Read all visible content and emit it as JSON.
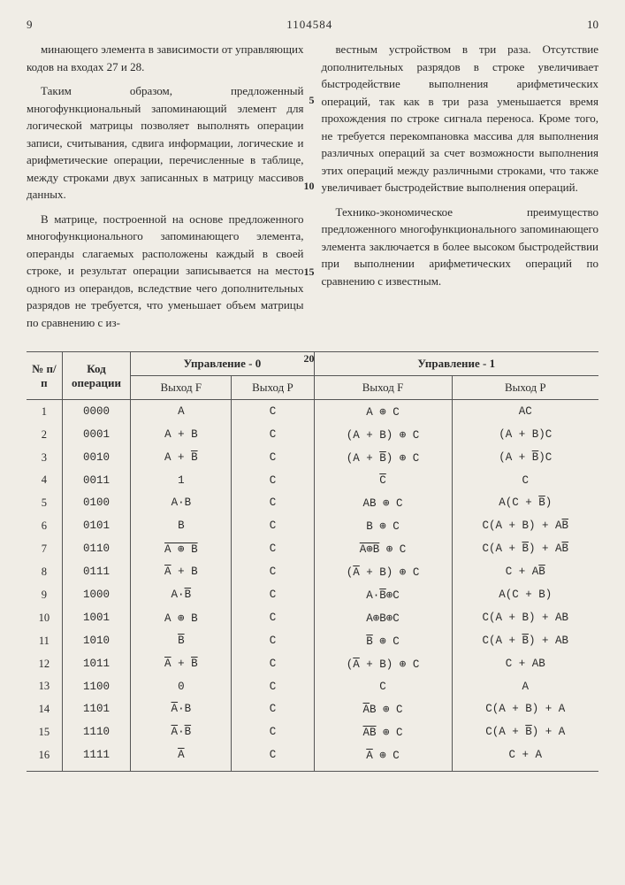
{
  "header": {
    "page_left": "9",
    "doc_number": "1104584",
    "page_right": "10"
  },
  "text": {
    "left_p1": "минающего элемента в зависимости от управляющих кодов на входах 27 и 28.",
    "left_p2": "Таким образом, предложенный многофункциональный запоминающий элемент для логической матрицы позволяет выполнять операции записи, считывания, сдвига информации, логические и арифметические операции, перечисленные в таблице, между строками двух записанных в матрицу массивов данных.",
    "left_p3": "В матрице, построенной на основе предложенного многофункционального запоминающего элемента, операнды слагаемых расположены каждый в своей строке, и результат операции записывается на место одного из операндов, вследствие чего дополнительных разрядов не требуется, что уменьшает объем матрицы по сравнению с из-",
    "right_p1": "вестным устройством в три раза. Отсутствие дополнительных разрядов в строке увеличивает быстродействие выполнения арифметических операций, так как в три раза уменьшается время прохождения по строке сигнала переноса. Кроме того, не требуется перекомпановка массива для выполнения различных операций за счет возможности выполнения этих операций между различными строками, что также увеличивает быстродействие выполнения операций.",
    "right_p2": "Технико-экономическое преимущество предложенного многофункционального запоминающего элемента заключается в более высоком быстродействии при выполнении арифметических операций по сравнению с известным."
  },
  "line_nums": [
    "5",
    "10",
    "15",
    "20"
  ],
  "table": {
    "headers": {
      "n": "№ п/п",
      "code": "Код операции",
      "ctrl0": "Управление - 0",
      "ctrl1": "Управление - 1",
      "outF": "Выход F",
      "outP": "Выход P"
    },
    "rows": [
      {
        "n": "1",
        "code": "0000",
        "f0": "A",
        "p0": "C",
        "f1": "A ⊕ C",
        "p1": "AC"
      },
      {
        "n": "2",
        "code": "0001",
        "f0": "A + B",
        "p0": "C",
        "f1": "(A + B) ⊕ C",
        "p1": "(A + B)C"
      },
      {
        "n": "3",
        "code": "0010",
        "f0": "A + <span class='over'>B</span>",
        "p0": "C",
        "f1": "(A + <span class='over'>B</span>) ⊕ C",
        "p1": "(A + <span class='over'>B</span>)C"
      },
      {
        "n": "4",
        "code": "0011",
        "f0": "1",
        "p0": "C",
        "f1": "<span class='over'>C</span>",
        "p1": "C"
      },
      {
        "n": "5",
        "code": "0100",
        "f0": "A·B",
        "p0": "C",
        "f1": "AB ⊕ C",
        "p1": "A(C + <span class='over'>B</span>)"
      },
      {
        "n": "6",
        "code": "0101",
        "f0": "B",
        "p0": "C",
        "f1": "B ⊕ C",
        "p1": "C(A + B) + A<span class='over'>B</span>"
      },
      {
        "n": "7",
        "code": "0110",
        "f0": "<span class='over'>A ⊕ B</span>",
        "p0": "C",
        "f1": "<span class='over'>A⊕B</span> ⊕ C",
        "p1": "C(A + <span class='over'>B</span>) + A<span class='over'>B</span>"
      },
      {
        "n": "8",
        "code": "0111",
        "f0": "<span class='over'>A</span> + B",
        "p0": "C",
        "f1": "(<span class='over'>A</span> + B) ⊕ C",
        "p1": "C + A<span class='over'>B</span>"
      },
      {
        "n": "9",
        "code": "1000",
        "f0": "A·<span class='over'>B</span>",
        "p0": "C",
        "f1": "A·<span class='over'>B</span>⊕C",
        "p1": "A(C + B)"
      },
      {
        "n": "10",
        "code": "1001",
        "f0": "A ⊕ B",
        "p0": "C",
        "f1": "A⊕B⊕C",
        "p1": "C(A + B) + AB"
      },
      {
        "n": "11",
        "code": "1010",
        "f0": "<span class='over'>B</span>",
        "p0": "C",
        "f1": "<span class='over'>B</span> ⊕ C",
        "p1": "C(A + <span class='over'>B</span>) + AB"
      },
      {
        "n": "12",
        "code": "1011",
        "f0": "<span class='over'>A</span> + <span class='over'>B</span>",
        "p0": "C",
        "f1": "(<span class='over'>A</span> + B) ⊕ C",
        "p1": "C + AB"
      },
      {
        "n": "13",
        "code": "1100",
        "f0": "0",
        "p0": "C",
        "f1": "C",
        "p1": "A"
      },
      {
        "n": "14",
        "code": "1101",
        "f0": "<span class='over'>A</span>·B",
        "p0": "C",
        "f1": "<span class='over'>A</span>B ⊕ C",
        "p1": "C(A + B) + A"
      },
      {
        "n": "15",
        "code": "1110",
        "f0": "<span class='over'>A</span>·<span class='over'>B</span>",
        "p0": "C",
        "f1": "<span class='over'>AB</span> ⊕ C",
        "p1": "C(A + <span class='over'>B</span>) + A"
      },
      {
        "n": "16",
        "code": "1111",
        "f0": "<span class='over'>A</span>",
        "p0": "C",
        "f1": "<span class='over'>A</span> ⊕ C",
        "p1": "C + A"
      }
    ]
  }
}
